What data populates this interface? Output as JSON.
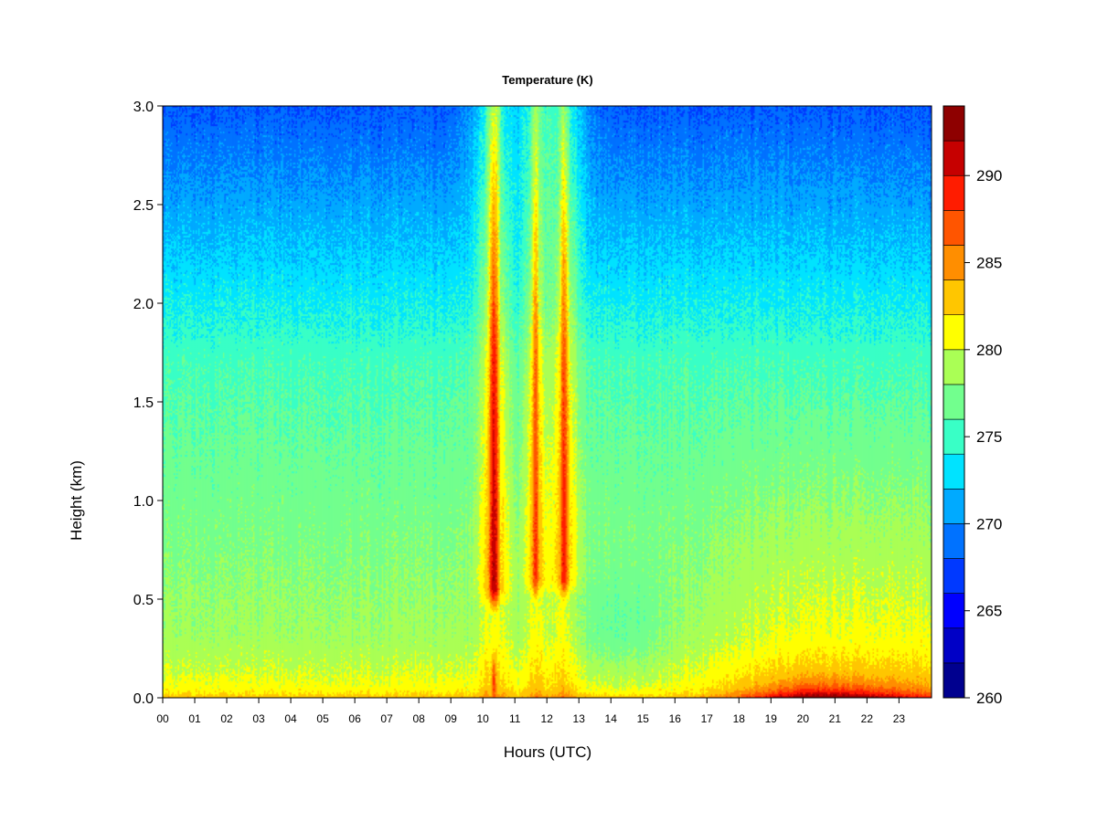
{
  "chart_data": {
    "type": "heatmap",
    "title": "Temperature (K)",
    "xlabel": "Hours (UTC)",
    "ylabel": "Height (km)",
    "xlim": [
      0,
      24
    ],
    "ylim": [
      0,
      3.0
    ],
    "x_ticks": [
      "00",
      "01",
      "02",
      "03",
      "04",
      "05",
      "06",
      "07",
      "08",
      "09",
      "10",
      "11",
      "12",
      "13",
      "14",
      "15",
      "16",
      "17",
      "18",
      "19",
      "20",
      "21",
      "22",
      "23"
    ],
    "y_ticks": [
      "0.0",
      "0.5",
      "1.0",
      "1.5",
      "2.0",
      "2.5",
      "3.0"
    ],
    "colorbar": {
      "range": [
        260,
        294
      ],
      "tick_values": [
        260,
        265,
        270,
        275,
        280,
        285,
        290
      ],
      "tick_labels": [
        "260",
        "265",
        "270",
        "275",
        "280",
        "285",
        "290"
      ],
      "levels": [
        {
          "from": 260,
          "to": 262,
          "color": "#00008F"
        },
        {
          "from": 262,
          "to": 264,
          "color": "#0000C6"
        },
        {
          "from": 264,
          "to": 266,
          "color": "#0000FF"
        },
        {
          "from": 266,
          "to": 268,
          "color": "#0039FF"
        },
        {
          "from": 268,
          "to": 270,
          "color": "#0072FF"
        },
        {
          "from": 270,
          "to": 272,
          "color": "#00AAFF"
        },
        {
          "from": 272,
          "to": 274,
          "color": "#00E3FF"
        },
        {
          "from": 274,
          "to": 276,
          "color": "#39FFC6"
        },
        {
          "from": 276,
          "to": 278,
          "color": "#72FF8E"
        },
        {
          "from": 278,
          "to": 280,
          "color": "#AAFF55"
        },
        {
          "from": 280,
          "to": 282,
          "color": "#FFFF00"
        },
        {
          "from": 282,
          "to": 284,
          "color": "#FFC600"
        },
        {
          "from": 284,
          "to": 286,
          "color": "#FF8E00"
        },
        {
          "from": 286,
          "to": 288,
          "color": "#FF5500"
        },
        {
          "from": 288,
          "to": 290,
          "color": "#FF1C00"
        },
        {
          "from": 290,
          "to": 292,
          "color": "#C60000"
        },
        {
          "from": 292,
          "to": 294,
          "color": "#8E0000"
        }
      ]
    },
    "features": [
      {
        "description": "warm column",
        "x_center": 10.35,
        "x_halfwidth": 0.2,
        "height_range": [
          0.4,
          3.0
        ],
        "peak_value": 290
      },
      {
        "description": "warm column",
        "x_center": 11.65,
        "x_halfwidth": 0.14,
        "height_range": [
          0.45,
          3.0
        ],
        "peak_value": 287
      },
      {
        "description": "warm column",
        "x_center": 12.55,
        "x_halfwidth": 0.18,
        "height_range": [
          0.45,
          3.0
        ],
        "peak_value": 287.5
      },
      {
        "description": "warm surface layer",
        "x_range": [
          17.5,
          23.5
        ],
        "height_range": [
          0.0,
          0.15
        ],
        "peak_value": 289
      }
    ]
  }
}
